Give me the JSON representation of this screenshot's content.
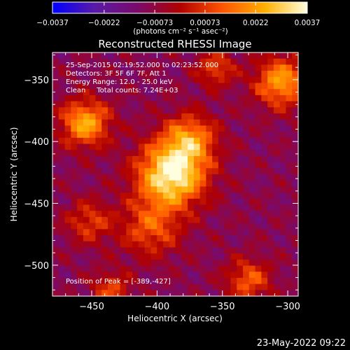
{
  "chart_data": {
    "type": "heatmap",
    "title": "Reconstructed RHESSI Image",
    "xlabel": "Heliocentric X (arcsec)",
    "ylabel": "Heliocentric Y (arcsec)",
    "xlim": [
      -480,
      -292
    ],
    "ylim": [
      -525,
      -328
    ],
    "x_ticks": [
      -450,
      -400,
      -350,
      -300
    ],
    "y_ticks": [
      -350,
      -400,
      -450,
      -500
    ],
    "colorbar": {
      "min": -0.0037,
      "max": 0.0037,
      "ticks": [
        -0.0037,
        -0.0022,
        -0.00073,
        0.00073,
        0.0022,
        0.0037
      ],
      "tick_labels": [
        "-0.0037",
        "-0.0022",
        "-0.00073",
        "0.00073",
        "0.0022",
        "0.0037"
      ],
      "units_label": "(photons cm⁻² s⁻¹ asec⁻²)",
      "colormap": [
        "#0000ff",
        "#5a1aa8",
        "#7a0a6a",
        "#b00000",
        "#ff5500",
        "#ffb000",
        "#ffffe0"
      ]
    },
    "sources": [
      {
        "x": -389,
        "y": -427,
        "amplitude": 0.0037,
        "sigma": 18
      },
      {
        "x": -375,
        "y": -398,
        "amplitude": 0.0018,
        "sigma": 14
      },
      {
        "x": -455,
        "y": -385,
        "amplitude": 0.0024,
        "sigma": 13
      },
      {
        "x": -305,
        "y": -352,
        "amplitude": 0.0022,
        "sigma": 14
      },
      {
        "x": -355,
        "y": -341,
        "amplitude": 0.001,
        "sigma": 10
      },
      {
        "x": -405,
        "y": -470,
        "amplitude": 0.0011,
        "sigma": 16
      },
      {
        "x": -452,
        "y": -465,
        "amplitude": 0.0008,
        "sigma": 12
      },
      {
        "x": -330,
        "y": -512,
        "amplitude": 0.0012,
        "sigma": 12
      },
      {
        "x": -435,
        "y": -520,
        "amplitude": 0.0009,
        "sigma": 10
      }
    ],
    "background_level": -0.0009
  },
  "annotations": {
    "time_range": "25-Sep-2015 02:19:52.000 to 02:23:52.000",
    "detectors": "Detectors: 3F 5F 6F 7F, Att 1",
    "energy": "Energy Range: 12.0 - 25.0 keV",
    "clean": "Clean     Total counts: 7.24E+03",
    "peak": "Position of Peak = [-389,-427]"
  },
  "timestamp": "23-May-2022 09:22"
}
